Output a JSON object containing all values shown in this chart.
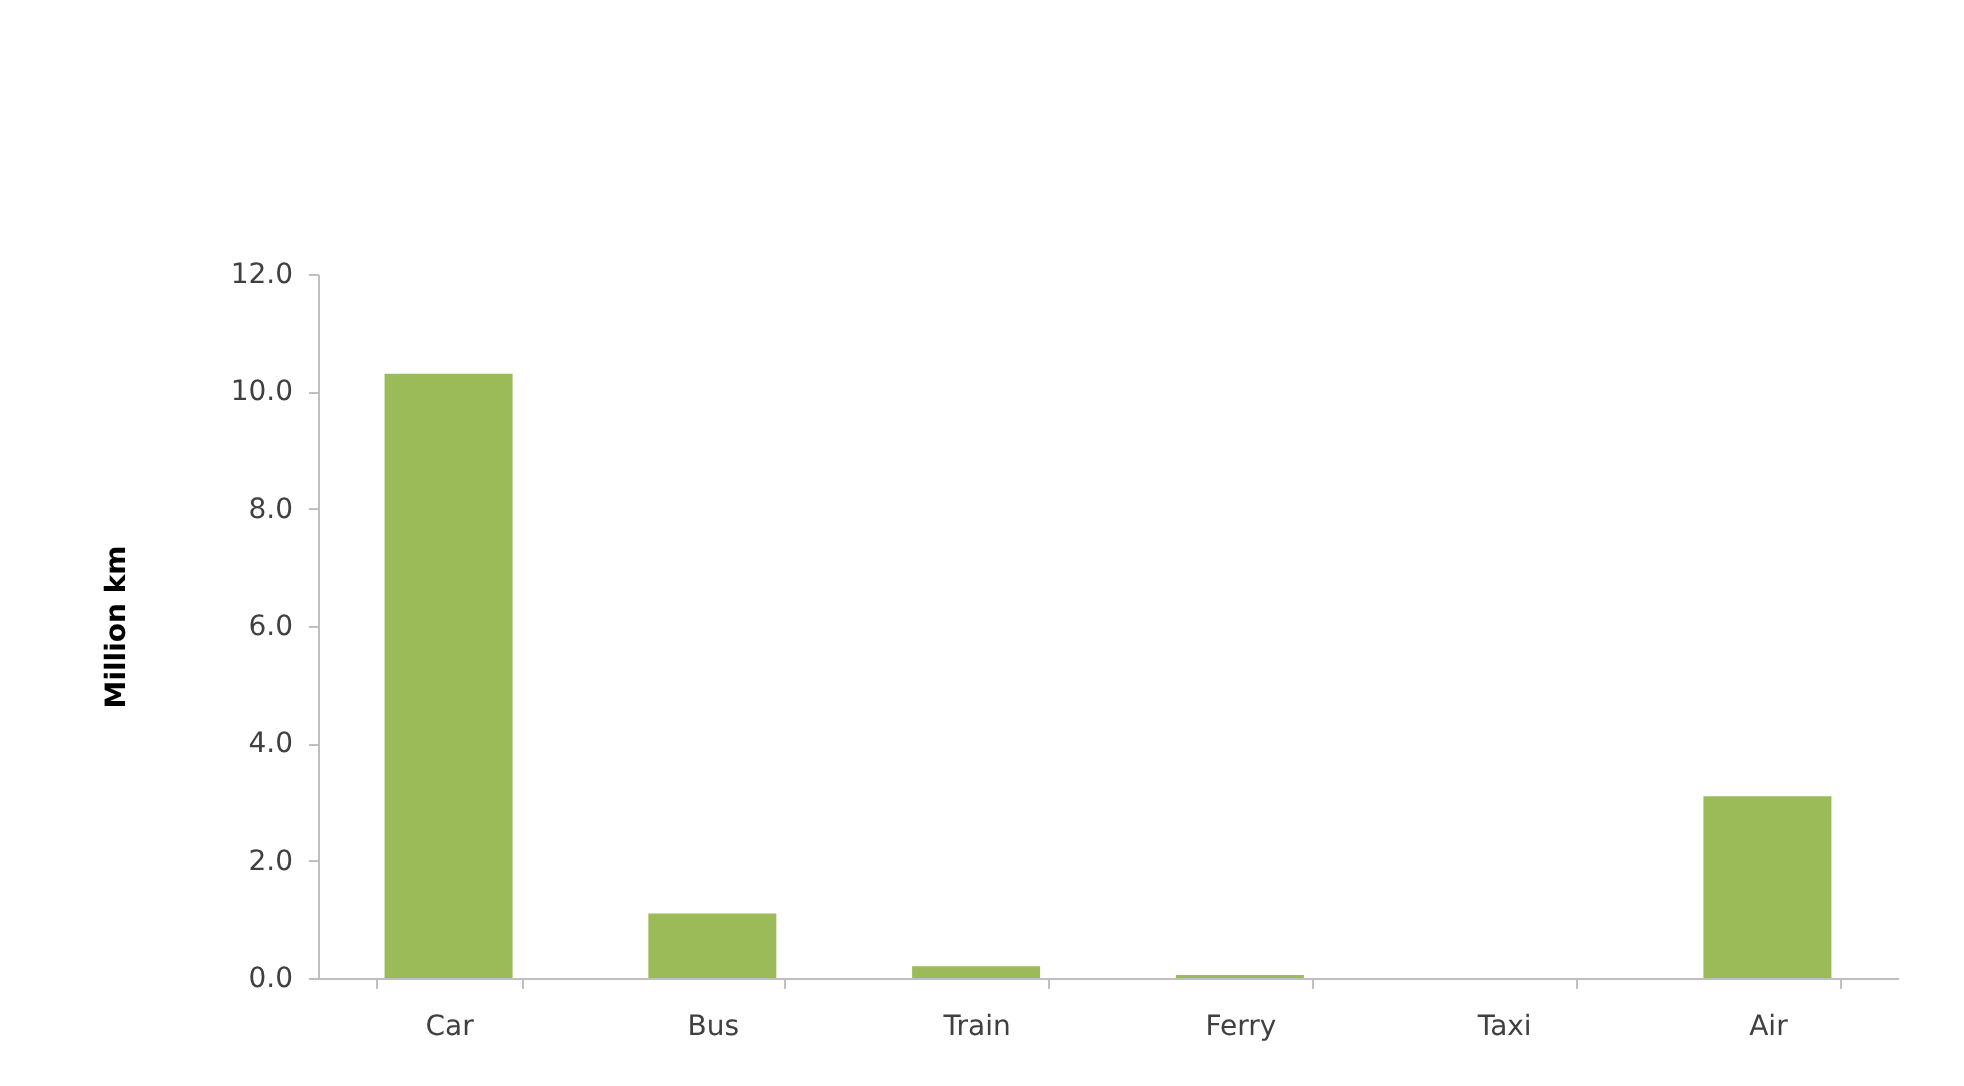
{
  "chart_data": {
    "type": "bar",
    "ylabel": "Million km",
    "categories": [
      "Car",
      "Bus",
      "Train",
      "Ferry",
      "Taxi",
      "Air"
    ],
    "values": [
      10.3,
      1.1,
      0.2,
      0.05,
      0,
      3.1
    ],
    "color": "#9bbb59",
    "ylim": [
      0,
      12
    ],
    "yticks": [
      {
        "value": 0,
        "label": "0.0"
      },
      {
        "value": 2,
        "label": "2.0"
      },
      {
        "value": 4,
        "label": "4.0"
      },
      {
        "value": 6,
        "label": "6.0"
      },
      {
        "value": 8,
        "label": "8.0"
      },
      {
        "value": 10,
        "label": "10.0"
      },
      {
        "value": 12,
        "label": "12.0"
      }
    ],
    "grid": false
  }
}
